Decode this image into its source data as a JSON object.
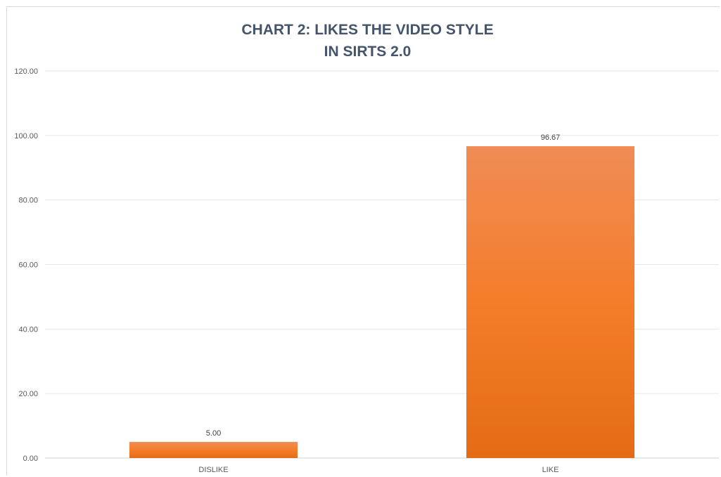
{
  "chart_data": {
    "type": "bar",
    "title": "CHART 2:  LIKES THE VIDEO STYLE",
    "subtitle": "IN SIRTS  2.0",
    "categories": [
      "DISLIKE",
      "LIKE"
    ],
    "values": [
      5.0,
      96.67
    ],
    "value_labels": [
      "5.00",
      "96.67"
    ],
    "ylim": [
      0,
      120
    ],
    "yticks": [
      0,
      20,
      40,
      60,
      80,
      100,
      120
    ],
    "ytick_labels": [
      "0.00",
      "20.00",
      "40.00",
      "60.00",
      "80.00",
      "100.00",
      "120.00"
    ],
    "grid": true,
    "legend": "none",
    "colors": {
      "bar_top": "#f08c55",
      "bar_mid": "#f47d2a",
      "bar_bottom": "#e36c15",
      "grid": "#e6e6e6",
      "title": "#44546a"
    }
  }
}
